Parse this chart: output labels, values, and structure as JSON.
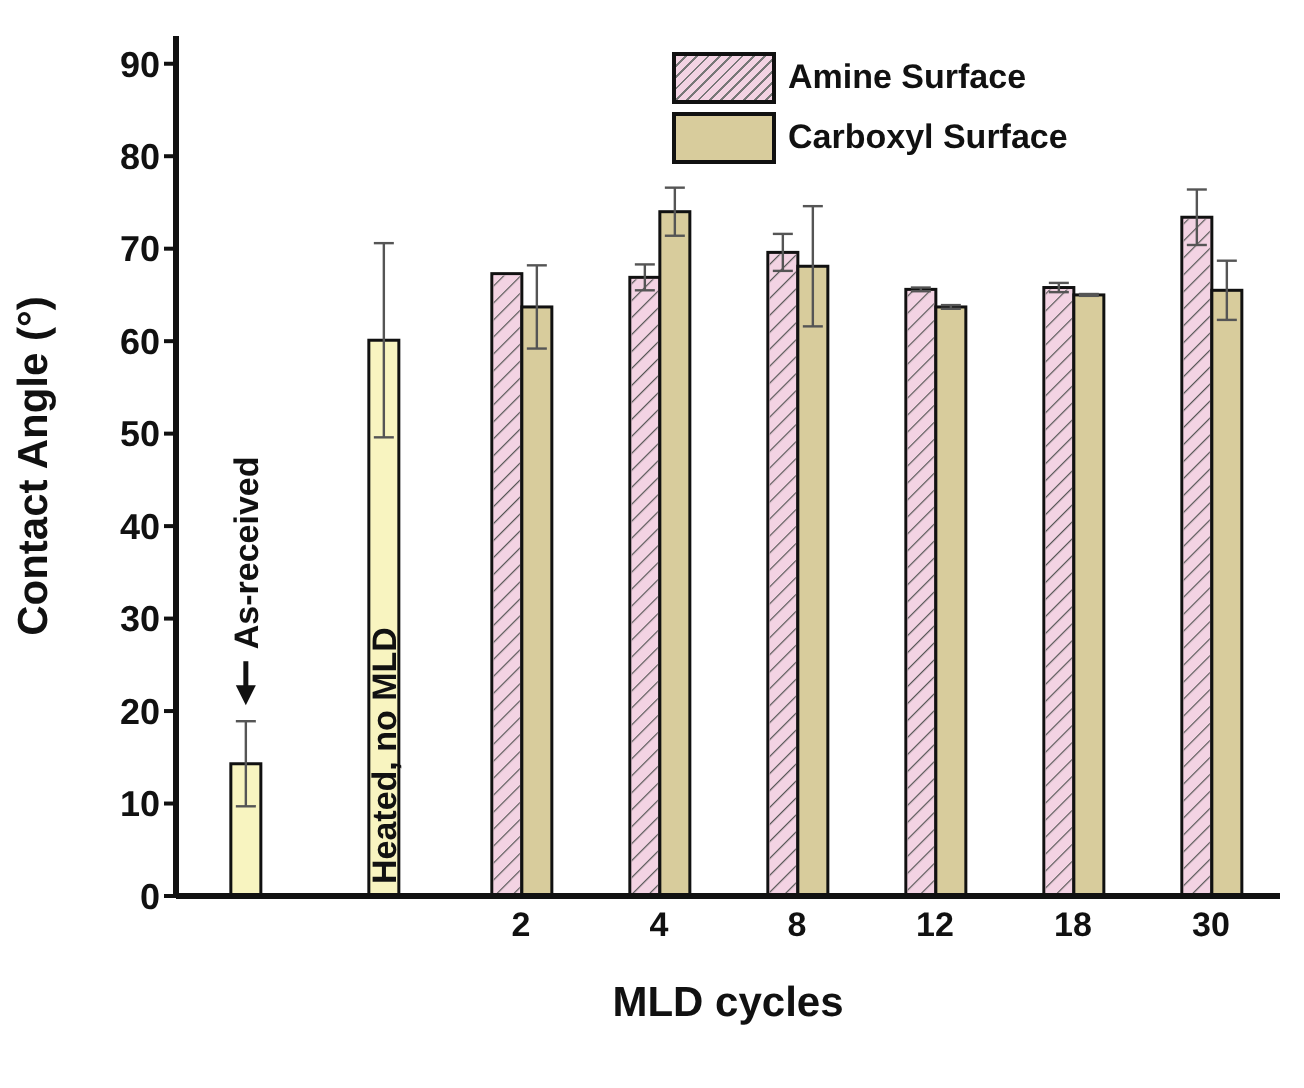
{
  "chart_data": {
    "type": "bar",
    "xlabel": "MLD cycles",
    "ylabel": "Contact Angle (°)",
    "categories": [
      null,
      null,
      "2",
      "4",
      "8",
      "12",
      "18",
      "30"
    ],
    "series": [
      {
        "name": "Amine Surface",
        "color": "#f3d3e3",
        "values": [
          null,
          null,
          67.3,
          66.9,
          69.6,
          65.6,
          65.8,
          73.4
        ],
        "errors": [
          null,
          null,
          null,
          1.4,
          2,
          0.2,
          0.5,
          3
        ]
      },
      {
        "name": "Carboxyl Surface",
        "color": "#d8cc9c",
        "values": [
          null,
          null,
          63.7,
          74.0,
          68.1,
          63.7,
          65.0,
          65.5
        ],
        "errors": [
          null,
          null,
          4.5,
          2.6,
          6.5,
          0.2,
          0.1,
          3.2
        ]
      },
      {
        "color": "#f8f4c0",
        "values": [
          14.3,
          60.1,
          null,
          null,
          null,
          null,
          null,
          null
        ],
        "errors": [
          4.6,
          10.5,
          null,
          null,
          null,
          null,
          null,
          null
        ]
      }
    ],
    "annotations": [
      "As-received",
      "Heated, no MLD"
    ],
    "ylim": [
      0,
      93
    ],
    "yticks": [
      0,
      10,
      20,
      30,
      40,
      50,
      60,
      70,
      80,
      90
    ],
    "grid": false,
    "legend": "top right"
  }
}
